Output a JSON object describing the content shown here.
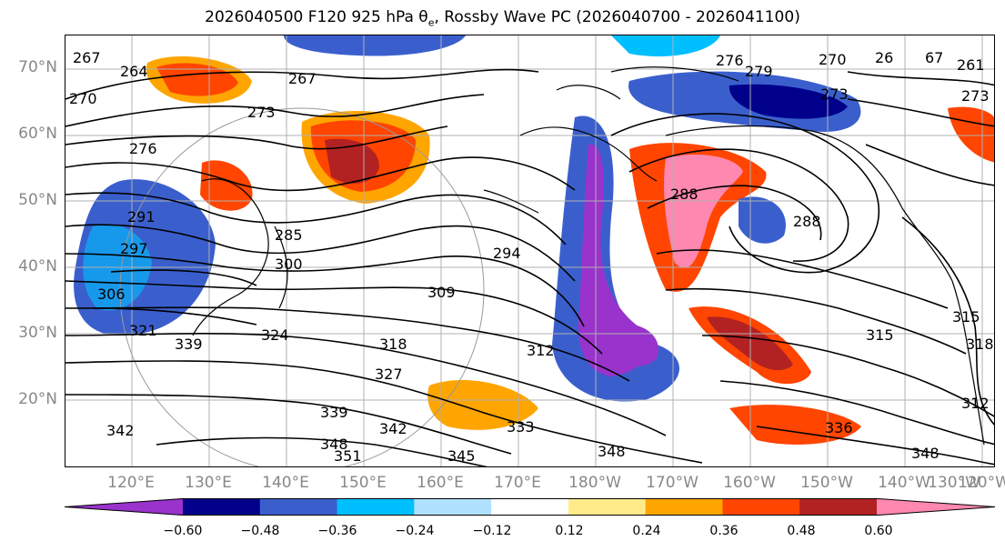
{
  "title": {
    "prefix": "2026040500 F120 925 hPa θ",
    "subscript": "e",
    "suffix": ", Rossby Wave PC (2026040700 - 2026041100)"
  },
  "map": {
    "lat_labels": [
      "70°N",
      "60°N",
      "50°N",
      "40°N",
      "30°N",
      "20°N"
    ],
    "lon_labels": [
      "120°E",
      "130°E",
      "140°E",
      "150°E",
      "160°E",
      "170°E",
      "180°W",
      "170°W",
      "160°W",
      "150°W",
      "140°W",
      "130°W",
      "120°W"
    ],
    "contour_labels": [
      "267",
      "264",
      "267",
      "270",
      "273",
      "276",
      "276",
      "279",
      "270",
      "26",
      "67",
      "261",
      "273",
      "273",
      "288",
      "288",
      "291",
      "285",
      "294",
      "297",
      "300",
      "306",
      "309",
      "315",
      "318",
      "321",
      "312",
      "327",
      "324",
      "339",
      "339",
      "342",
      "333",
      "336",
      "345",
      "348",
      "348",
      "351",
      "348",
      "342",
      "312",
      "315",
      "318"
    ]
  },
  "colorbar": {
    "ticks": [
      "−0.60",
      "−0.48",
      "−0.36",
      "−0.24",
      "−0.12",
      "0.12",
      "0.24",
      "0.36",
      "0.48",
      "0.60"
    ],
    "colors": [
      "#9933cc",
      "#00008b",
      "#3a5fcd",
      "#00bfff",
      "#b0e2ff",
      "#ffffff",
      "#ffeb8a",
      "#ffa500",
      "#ff4500",
      "#b22222",
      "#ff88b0"
    ]
  }
}
